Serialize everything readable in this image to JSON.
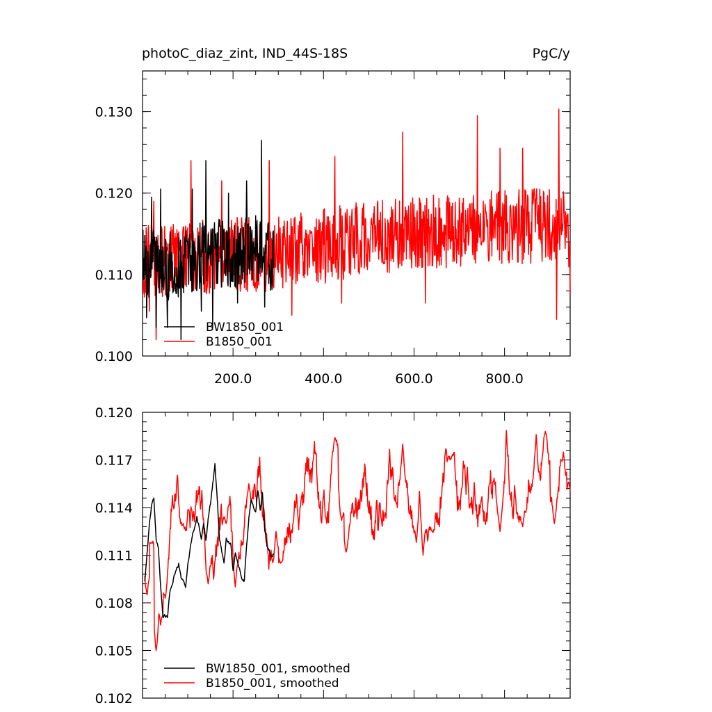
{
  "chart_data": [
    {
      "type": "line",
      "title_left": "photoC_diaz_zint, IND_44S-18S",
      "title_right": "PgC/y",
      "xlim": [
        0,
        945
      ],
      "ylim": [
        0.1,
        0.135
      ],
      "xticks": [
        200,
        400,
        600,
        800
      ],
      "xtick_labels": [
        "200.0",
        "400.0",
        "600.0",
        "800.0"
      ],
      "yticks": [
        0.1,
        0.11,
        0.12,
        0.13
      ],
      "ytick_labels": [
        "0.100",
        "0.110",
        "0.120",
        "0.130"
      ],
      "legend_position": "bottom-left",
      "series": [
        {
          "name": "BW1850_001",
          "color": "#000000",
          "x_start": 1,
          "x_end": 290,
          "base": [
            [
              0,
              0.1115
            ],
            [
              50,
              0.111
            ],
            [
              100,
              0.1115
            ],
            [
              150,
              0.113
            ],
            [
              200,
              0.112
            ],
            [
              250,
              0.1135
            ],
            [
              290,
              0.112
            ]
          ],
          "amplitude": 0.0042,
          "spikes": [
            [
              5,
              0.1148
            ],
            [
              9,
              0.1047
            ],
            [
              20,
              0.1195
            ],
            [
              30,
              0.1035
            ],
            [
              40,
              0.1205
            ],
            [
              55,
              0.1035
            ],
            [
              85,
              0.102
            ],
            [
              110,
              0.1205
            ],
            [
              130,
              0.1055
            ],
            [
              140,
              0.124
            ],
            [
              155,
              0.1035
            ],
            [
              190,
              0.12
            ],
            [
              210,
              0.1065
            ],
            [
              230,
              0.1215
            ],
            [
              263,
              0.1265
            ],
            [
              270,
              0.106
            ]
          ]
        },
        {
          "name": "B1850_001",
          "color": "#ff0000",
          "x_start": 1,
          "x_end": 945,
          "base": [
            [
              0,
              0.1115
            ],
            [
              100,
              0.112
            ],
            [
              200,
              0.1125
            ],
            [
              300,
              0.1125
            ],
            [
              400,
              0.1135
            ],
            [
              500,
              0.1145
            ],
            [
              600,
              0.1152
            ],
            [
              700,
              0.1155
            ],
            [
              800,
              0.1158
            ],
            [
              900,
              0.116
            ],
            [
              945,
              0.1155
            ]
          ],
          "amplitude": 0.0046,
          "spikes": [
            [
              15,
              0.1055
            ],
            [
              25,
              0.119
            ],
            [
              30,
              0.102
            ],
            [
              107,
              0.124
            ],
            [
              175,
              0.1215
            ],
            [
              230,
              0.1165
            ],
            [
              280,
              0.124
            ],
            [
              330,
              0.105
            ],
            [
              425,
              0.1245
            ],
            [
              440,
              0.1065
            ],
            [
              575,
              0.1275
            ],
            [
              625,
              0.1065
            ],
            [
              740,
              0.1295
            ],
            [
              790,
              0.1255
            ],
            [
              840,
              0.1255
            ],
            [
              915,
              0.1045
            ],
            [
              920,
              0.1303
            ],
            [
              945,
              0.1075
            ]
          ]
        }
      ]
    },
    {
      "type": "line",
      "xlim": [
        0,
        945
      ],
      "ylim": [
        0.102,
        0.12
      ],
      "xticks": [
        200,
        400,
        600,
        800
      ],
      "yticks": [
        0.102,
        0.105,
        0.108,
        0.111,
        0.114,
        0.117,
        0.12
      ],
      "ytick_labels": [
        "0.102",
        "0.105",
        "0.108",
        "0.111",
        "0.114",
        "0.117",
        "0.120"
      ],
      "legend_position": "bottom-left",
      "series": [
        {
          "name": "BW1850_001, smoothed",
          "color": "#000000",
          "points": [
            [
              5,
              0.1094
            ],
            [
              10,
              0.1112
            ],
            [
              15,
              0.113
            ],
            [
              20,
              0.1142
            ],
            [
              25,
              0.1144
            ],
            [
              30,
              0.112
            ],
            [
              35,
              0.1115
            ],
            [
              40,
              0.109
            ],
            [
              45,
              0.1071
            ],
            [
              55,
              0.107
            ],
            [
              60,
              0.1085
            ],
            [
              70,
              0.1098
            ],
            [
              80,
              0.1104
            ],
            [
              85,
              0.1095
            ],
            [
              95,
              0.109
            ],
            [
              100,
              0.1104
            ],
            [
              110,
              0.1122
            ],
            [
              120,
              0.1134
            ],
            [
              130,
              0.112
            ],
            [
              135,
              0.113
            ],
            [
              140,
              0.112
            ],
            [
              145,
              0.1135
            ],
            [
              150,
              0.1142
            ],
            [
              160,
              0.1168
            ],
            [
              165,
              0.1145
            ],
            [
              170,
              0.112
            ],
            [
              180,
              0.1105
            ],
            [
              185,
              0.112
            ],
            [
              195,
              0.1118
            ],
            [
              200,
              0.11
            ],
            [
              205,
              0.111
            ],
            [
              215,
              0.11
            ],
            [
              225,
              0.1095
            ],
            [
              230,
              0.1118
            ],
            [
              235,
              0.1135
            ],
            [
              240,
              0.1145
            ],
            [
              250,
              0.1138
            ],
            [
              255,
              0.1152
            ],
            [
              260,
              0.114
            ],
            [
              265,
              0.115
            ],
            [
              270,
              0.1125
            ],
            [
              275,
              0.1115
            ],
            [
              285,
              0.111
            ],
            [
              290,
              0.1112
            ]
          ]
        },
        {
          "name": "B1850_001, smoothed",
          "color": "#ff0000",
          "base": [
            [
              0,
              0.111
            ],
            [
              30,
              0.109
            ],
            [
              50,
              0.111
            ],
            [
              100,
              0.1125
            ],
            [
              200,
              0.1125
            ],
            [
              300,
              0.113
            ],
            [
              400,
              0.113
            ],
            [
              500,
              0.1142
            ],
            [
              600,
              0.1148
            ],
            [
              700,
              0.1152
            ],
            [
              800,
              0.1158
            ],
            [
              900,
              0.1162
            ],
            [
              945,
              0.116
            ]
          ],
          "amplitude": 0.0011,
          "spikes": [
            [
              10,
              0.1085
            ],
            [
              20,
              0.1118
            ],
            [
              30,
              0.105
            ],
            [
              40,
              0.1066
            ],
            [
              50,
              0.1083
            ],
            [
              90,
              0.113
            ],
            [
              145,
              0.1092
            ],
            [
              185,
              0.113
            ],
            [
              205,
              0.109
            ],
            [
              235,
              0.1155
            ],
            [
              295,
              0.1125
            ],
            [
              305,
              0.1105
            ],
            [
              425,
              0.1184
            ],
            [
              440,
              0.1132
            ],
            [
              450,
              0.1112
            ],
            [
              575,
              0.118
            ],
            [
              605,
              0.1118
            ],
            [
              620,
              0.111
            ],
            [
              640,
              0.1125
            ],
            [
              680,
              0.117
            ],
            [
              790,
              0.1125
            ],
            [
              840,
              0.1128
            ],
            [
              870,
              0.1186
            ],
            [
              890,
              0.1188
            ],
            [
              910,
              0.113
            ],
            [
              930,
              0.1175
            ],
            [
              945,
              0.115
            ]
          ]
        }
      ]
    }
  ]
}
